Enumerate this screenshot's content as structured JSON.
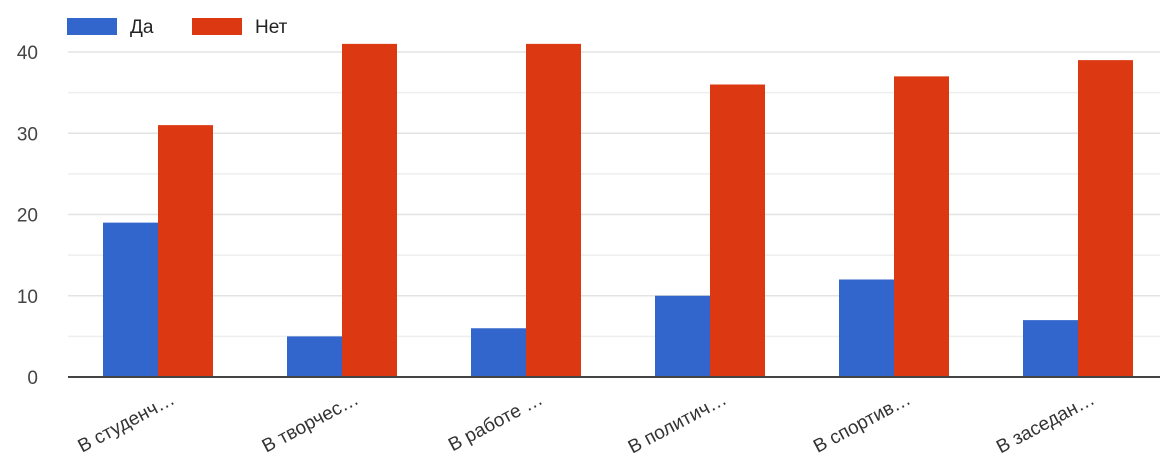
{
  "chart_data": {
    "type": "bar",
    "categories": [
      "В студенч…",
      "В творчес…",
      "В работе …",
      "В политич…",
      "В спортив…",
      "В заседан…"
    ],
    "series": [
      {
        "name": "Да",
        "values": [
          19,
          5,
          6,
          10,
          12,
          7
        ],
        "color": "#3366cc"
      },
      {
        "name": "Нет",
        "values": [
          31,
          41,
          41,
          36,
          37,
          39
        ],
        "color": "#dc3912"
      }
    ],
    "ylim": [
      0,
      42
    ],
    "yticks": [
      0,
      10,
      20,
      30,
      40
    ],
    "grid": true,
    "legend": "top-left",
    "title": "",
    "xlabel": "",
    "ylabel": ""
  }
}
